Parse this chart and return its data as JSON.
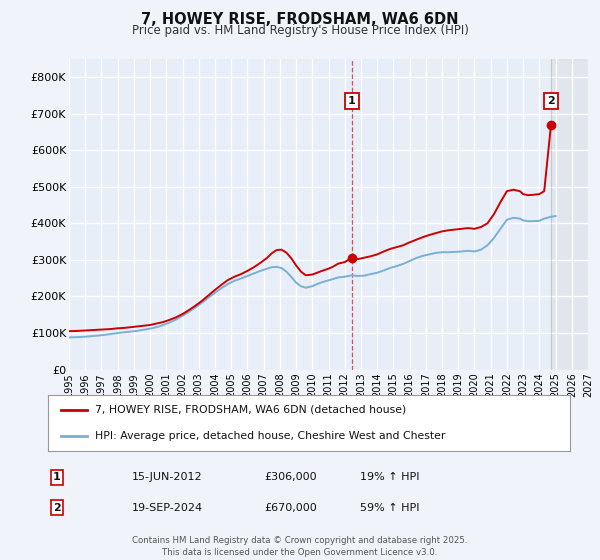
{
  "title": "7, HOWEY RISE, FRODSHAM, WA6 6DN",
  "subtitle": "Price paid vs. HM Land Registry's House Price Index (HPI)",
  "background_color": "#f0f4fa",
  "plot_bg_color": "#e8eef8",
  "grid_color": "#ffffff",
  "ylim": [
    0,
    850000
  ],
  "xlim_start": 1995.0,
  "xlim_end": 2027.0,
  "yticks": [
    0,
    100000,
    200000,
    300000,
    400000,
    500000,
    600000,
    700000,
    800000
  ],
  "ytick_labels": [
    "£0",
    "£100K",
    "£200K",
    "£300K",
    "£400K",
    "£500K",
    "£600K",
    "£700K",
    "£800K"
  ],
  "xticks": [
    1995,
    1996,
    1997,
    1998,
    1999,
    2000,
    2001,
    2002,
    2003,
    2004,
    2005,
    2006,
    2007,
    2008,
    2009,
    2010,
    2011,
    2012,
    2013,
    2014,
    2015,
    2016,
    2017,
    2018,
    2019,
    2020,
    2021,
    2022,
    2023,
    2024,
    2025,
    2026,
    2027
  ],
  "red_line_color": "#cc0000",
  "blue_line_color": "#7ab0d4",
  "sale1_x": 2012.45,
  "sale1_y": 306000,
  "sale1_label": "1",
  "sale1_date": "15-JUN-2012",
  "sale1_price": "£306,000",
  "sale1_hpi": "19% ↑ HPI",
  "sale2_x": 2024.72,
  "sale2_y": 670000,
  "sale2_label": "2",
  "sale2_date": "19-SEP-2024",
  "sale2_price": "£670,000",
  "sale2_hpi": "59% ↑ HPI",
  "legend_label_red": "7, HOWEY RISE, FRODSHAM, WA6 6DN (detached house)",
  "legend_label_blue": "HPI: Average price, detached house, Cheshire West and Chester",
  "footer_text": "Contains HM Land Registry data © Crown copyright and database right 2025.\nThis data is licensed under the Open Government Licence v3.0.",
  "red_hpi_x": [
    1995.0,
    1995.3,
    1995.6,
    1996.0,
    1996.4,
    1996.8,
    1997.2,
    1997.6,
    1998.0,
    1998.4,
    1998.8,
    1999.2,
    1999.6,
    2000.0,
    2000.4,
    2000.8,
    2001.2,
    2001.6,
    2002.0,
    2002.4,
    2002.8,
    2003.2,
    2003.6,
    2004.0,
    2004.4,
    2004.8,
    2005.2,
    2005.6,
    2006.0,
    2006.4,
    2006.8,
    2007.2,
    2007.5,
    2007.8,
    2008.1,
    2008.4,
    2008.7,
    2009.0,
    2009.3,
    2009.6,
    2010.0,
    2010.3,
    2010.6,
    2011.0,
    2011.3,
    2011.6,
    2012.0,
    2012.45,
    2012.8,
    2013.2,
    2013.6,
    2014.0,
    2014.4,
    2014.8,
    2015.2,
    2015.6,
    2016.0,
    2016.4,
    2016.8,
    2017.2,
    2017.6,
    2018.0,
    2018.4,
    2018.8,
    2019.2,
    2019.6,
    2020.0,
    2020.4,
    2020.8,
    2021.2,
    2021.6,
    2022.0,
    2022.4,
    2022.8,
    2023.0,
    2023.3,
    2023.6,
    2024.0,
    2024.3,
    2024.72
  ],
  "red_hpi_y": [
    105000,
    105500,
    106000,
    107000,
    108000,
    109000,
    110000,
    111000,
    113000,
    114000,
    116000,
    118000,
    120000,
    122000,
    126000,
    130000,
    136000,
    143000,
    152000,
    163000,
    175000,
    188000,
    203000,
    218000,
    232000,
    245000,
    254000,
    261000,
    270000,
    280000,
    292000,
    305000,
    318000,
    327000,
    328000,
    320000,
    305000,
    285000,
    268000,
    258000,
    260000,
    265000,
    270000,
    276000,
    282000,
    290000,
    294000,
    306000,
    302000,
    306000,
    310000,
    315000,
    323000,
    330000,
    335000,
    340000,
    348000,
    355000,
    362000,
    368000,
    373000,
    378000,
    381000,
    383000,
    385000,
    387000,
    385000,
    390000,
    400000,
    425000,
    458000,
    488000,
    492000,
    488000,
    480000,
    477000,
    478000,
    480000,
    488000,
    670000
  ],
  "blue_hpi_x": [
    1995.0,
    1995.3,
    1995.6,
    1996.0,
    1996.4,
    1996.8,
    1997.2,
    1997.6,
    1998.0,
    1998.4,
    1998.8,
    1999.2,
    1999.6,
    2000.0,
    2000.4,
    2000.8,
    2001.2,
    2001.6,
    2002.0,
    2002.4,
    2002.8,
    2003.2,
    2003.6,
    2004.0,
    2004.4,
    2004.8,
    2005.2,
    2005.6,
    2006.0,
    2006.4,
    2006.8,
    2007.2,
    2007.5,
    2007.8,
    2008.1,
    2008.4,
    2008.7,
    2009.0,
    2009.3,
    2009.6,
    2010.0,
    2010.3,
    2010.6,
    2011.0,
    2011.3,
    2011.6,
    2012.0,
    2012.45,
    2012.8,
    2013.2,
    2013.6,
    2014.0,
    2014.4,
    2014.8,
    2015.2,
    2015.6,
    2016.0,
    2016.4,
    2016.8,
    2017.2,
    2017.6,
    2018.0,
    2018.4,
    2018.8,
    2019.2,
    2019.6,
    2020.0,
    2020.4,
    2020.8,
    2021.2,
    2021.6,
    2022.0,
    2022.4,
    2022.8,
    2023.0,
    2023.3,
    2023.6,
    2024.0,
    2024.3,
    2024.72,
    2025.0
  ],
  "blue_hpi_y": [
    88000,
    88500,
    89000,
    90000,
    91500,
    93000,
    95000,
    97500,
    100000,
    102000,
    104000,
    106000,
    109000,
    112000,
    116000,
    122000,
    129000,
    137000,
    147000,
    158000,
    170000,
    183000,
    197000,
    210000,
    223000,
    234000,
    243000,
    249000,
    256000,
    263000,
    270000,
    276000,
    280000,
    281000,
    278000,
    268000,
    254000,
    238000,
    228000,
    224000,
    228000,
    234000,
    239000,
    244000,
    248000,
    252000,
    254000,
    258000,
    256000,
    257000,
    261000,
    265000,
    271000,
    278000,
    283000,
    289000,
    297000,
    305000,
    311000,
    315000,
    319000,
    321000,
    321000,
    322000,
    323000,
    325000,
    323000,
    328000,
    340000,
    360000,
    385000,
    410000,
    415000,
    413000,
    408000,
    406000,
    406000,
    407000,
    413000,
    418000,
    420000
  ]
}
